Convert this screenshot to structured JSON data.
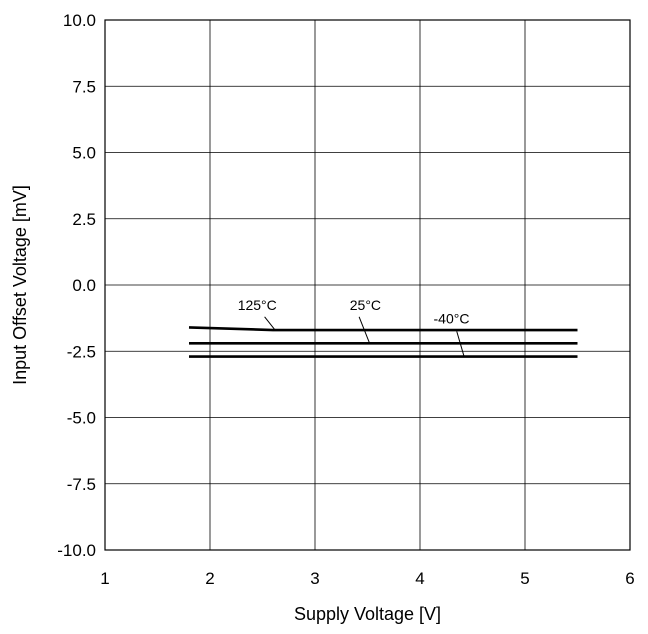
{
  "chart_data": {
    "type": "line",
    "title": "",
    "xlabel": "Supply Voltage [V]",
    "ylabel": "Input Offset Voltage [mV]",
    "xlim": [
      1,
      6
    ],
    "ylim": [
      -10.0,
      10.0
    ],
    "x_ticks": [
      "1",
      "2",
      "3",
      "4",
      "5",
      "6"
    ],
    "y_ticks": [
      "10.0",
      "7.5",
      "5.0",
      "2.5",
      "0.0",
      "-2.5",
      "-5.0",
      "-7.5",
      "-10.0"
    ],
    "grid": true,
    "series": [
      {
        "name": "125°C",
        "x": [
          1.8,
          2.6,
          3.0,
          4.0,
          5.0,
          5.5
        ],
        "y": [
          -1.6,
          -1.7,
          -1.7,
          -1.7,
          -1.7,
          -1.7
        ]
      },
      {
        "name": "25°C",
        "x": [
          1.8,
          3.0,
          4.0,
          5.0,
          5.5
        ],
        "y": [
          -2.2,
          -2.2,
          -2.2,
          -2.2,
          -2.2
        ]
      },
      {
        "name": "-40°C",
        "x": [
          1.8,
          3.0,
          4.0,
          5.0,
          5.5
        ],
        "y": [
          -2.7,
          -2.7,
          -2.7,
          -2.7,
          -2.7
        ]
      }
    ],
    "annotations": [
      {
        "text": "125°C",
        "series": "125°C"
      },
      {
        "text": "25°C",
        "series": "25°C"
      },
      {
        "text": "-40°C",
        "series": "-40°C"
      }
    ]
  }
}
